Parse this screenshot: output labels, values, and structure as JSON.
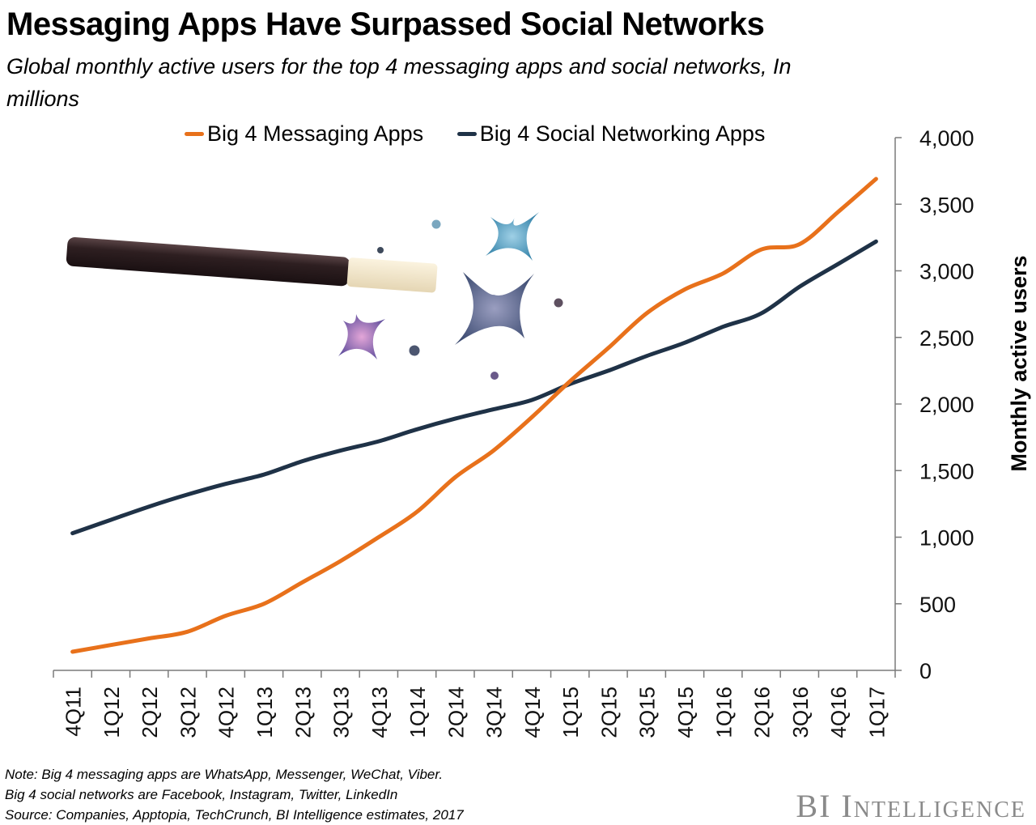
{
  "header": {
    "title": "Messaging Apps Have Surpassed Social Networks",
    "subtitle": "Global monthly active users for the top 4 messaging apps and social networks, In millions"
  },
  "notes": {
    "line1": "Note: Big 4 messaging apps are WhatsApp, Messenger, WeChat, Viber.",
    "line2": "Big 4 social networks are Facebook, Instagram, Twitter, LinkedIn",
    "line3": "Source: Companies,  Apptopia, TechCrunch,  BI Intelligence estimates, 2017"
  },
  "brand": {
    "text": "BI Intelligence"
  },
  "illustration": {
    "icon": "magic-wand-with-sparkles-icon"
  },
  "chart_data": {
    "type": "line",
    "title": "Messaging Apps Have Surpassed Social Networks",
    "subtitle": "Global monthly active users for the top 4 messaging apps and social networks, In millions",
    "xlabel": "",
    "ylabel": "Monthly active users",
    "ylim": [
      0,
      4000
    ],
    "yticks": [
      0,
      500,
      1000,
      1500,
      2000,
      2500,
      3000,
      3500,
      4000
    ],
    "ytick_labels": [
      "0",
      "500",
      "1,000",
      "1,500",
      "2,000",
      "2,500",
      "3,000",
      "3,500",
      "4,000"
    ],
    "y_axis_side": "right",
    "grid": false,
    "legend_position": "top",
    "categories": [
      "4Q11",
      "1Q12",
      "2Q12",
      "3Q12",
      "4Q12",
      "1Q13",
      "2Q13",
      "3Q13",
      "4Q13",
      "1Q14",
      "2Q14",
      "3Q14",
      "4Q14",
      "1Q15",
      "2Q15",
      "3Q15",
      "4Q15",
      "1Q16",
      "2Q16",
      "3Q16",
      "4Q16",
      "1Q17"
    ],
    "series": [
      {
        "name": "Big 4 Messaging Apps",
        "color": "#E8711B",
        "values": [
          140,
          190,
          240,
          290,
          410,
          500,
          660,
          820,
          1000,
          1190,
          1450,
          1650,
          1900,
          2170,
          2420,
          2680,
          2860,
          2980,
          3160,
          3200,
          3440,
          3690
        ]
      },
      {
        "name": "Big 4 Social Networking Apps",
        "color": "#1F3247",
        "values": [
          1030,
          1130,
          1230,
          1320,
          1400,
          1470,
          1570,
          1650,
          1720,
          1810,
          1890,
          1960,
          2030,
          2150,
          2250,
          2360,
          2460,
          2580,
          2680,
          2880,
          3050,
          3220
        ]
      }
    ]
  }
}
